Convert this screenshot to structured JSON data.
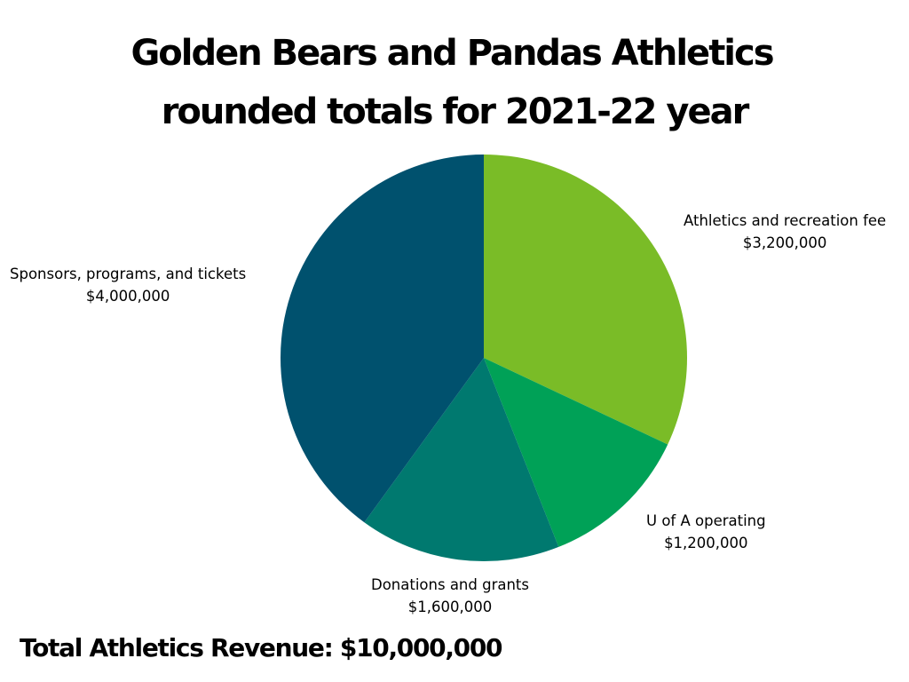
{
  "chart_data": {
    "type": "pie",
    "title": "Golden Bears and Pandas Athletics rounded totals for 2021-22 year",
    "title_lines": [
      "Golden Bears and Pandas Athletics",
      "rounded totals for 2021-22 year"
    ],
    "categories": [
      "Athletics and recreation fee",
      "U of A operating",
      "Donations and grants",
      "Sponsors, programs, and tickets"
    ],
    "values": [
      3200000,
      1200000,
      1600000,
      4000000
    ],
    "value_labels": [
      "$3,200,000",
      "$1,200,000",
      "$1,600,000",
      "$4,000,000"
    ],
    "colors": [
      "#7ABC27",
      "#00A157",
      "#00796F",
      "#00516E"
    ],
    "legend": "none",
    "total_label": "Total Athletics Revenue: $10,000,000"
  }
}
